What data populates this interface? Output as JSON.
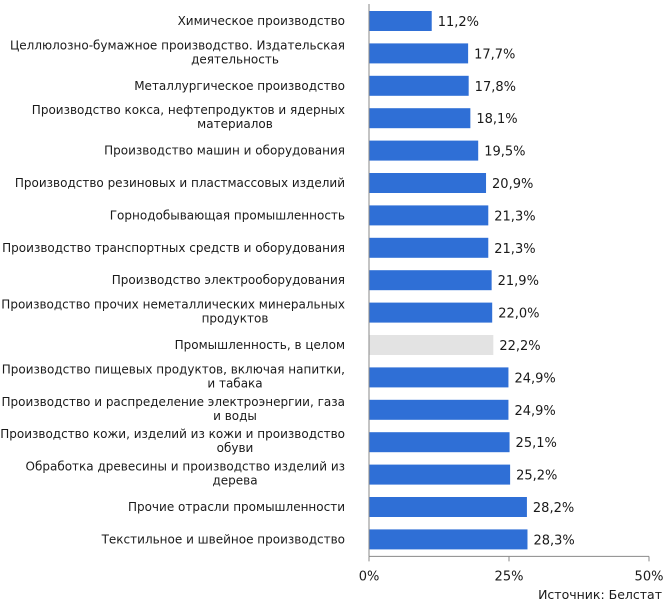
{
  "chart_data": {
    "type": "bar",
    "orientation": "horizontal",
    "categories": [
      [
        "Химическое производство"
      ],
      [
        "Целлюлозно-бумажное производство. Издательская",
        "деятельность"
      ],
      [
        "Металлургическое производство"
      ],
      [
        "Производство кокса, нефтепродуктов и ядерных",
        "материалов"
      ],
      [
        "Производство машин и оборудования"
      ],
      [
        "Производство резиновых и пластмассовых изделий"
      ],
      [
        "Горнодобывающая промышленность"
      ],
      [
        "Производство транспортных средств и оборудования"
      ],
      [
        "Производство электрооборудования"
      ],
      [
        "Производство прочих неметаллических минеральных",
        "продуктов"
      ],
      [
        "Промышленность, в целом"
      ],
      [
        "Производство пищевых продуктов, включая напитки,",
        "и табака"
      ],
      [
        "Производство и распределение электроэнергии, газа",
        "и воды"
      ],
      [
        "Производство кожи, изделий из кожи и производство",
        "обуви"
      ],
      [
        "Обработка древесины и производство изделий из",
        "дерева"
      ],
      [
        "Прочие отрасли промышленности"
      ],
      [
        "Текстильное и швейное производство"
      ]
    ],
    "values": [
      11.2,
      17.7,
      17.8,
      18.1,
      19.5,
      20.9,
      21.3,
      21.3,
      21.9,
      22.0,
      22.2,
      24.9,
      24.9,
      25.1,
      25.2,
      28.2,
      28.3
    ],
    "value_labels": [
      "11,2%",
      "17,7%",
      "17,8%",
      "18,1%",
      "19,5%",
      "20,9%",
      "21,3%",
      "21,3%",
      "21,9%",
      "22,0%",
      "22,2%",
      "24,9%",
      "24,9%",
      "25,1%",
      "25,2%",
      "28,2%",
      "28,3%"
    ],
    "highlight_index": 10,
    "xlim": [
      0,
      50
    ],
    "xticks": [
      0,
      25,
      50
    ],
    "xtick_labels": [
      "0%",
      "25%",
      "50%"
    ],
    "colors": {
      "bar": "#2f6fd6",
      "highlight": "#e3e3e3",
      "axis": "#8a8a8a"
    },
    "source": "Источник: Белстат"
  }
}
